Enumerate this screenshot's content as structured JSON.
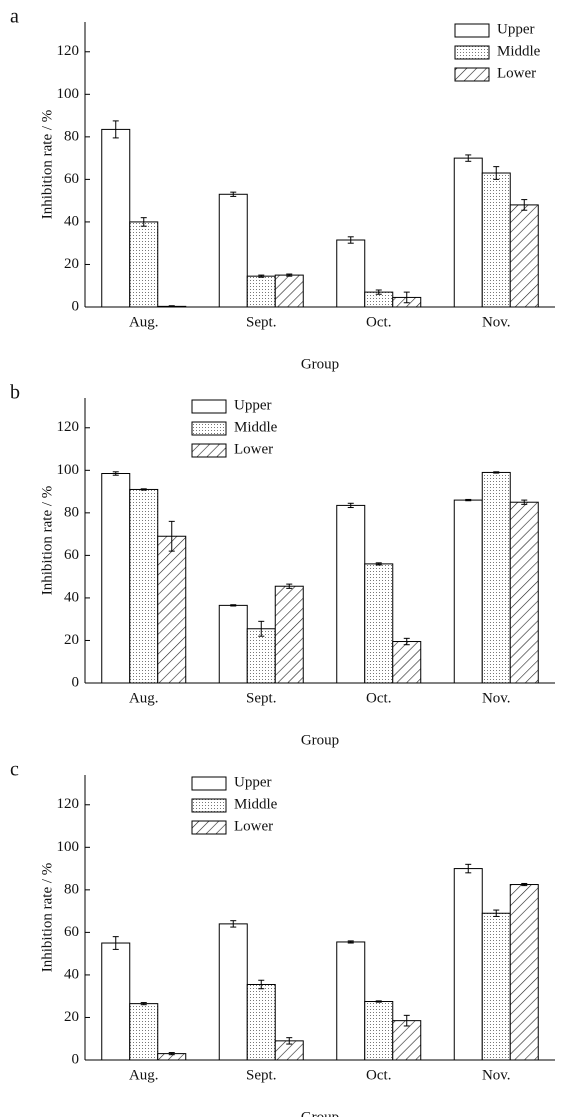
{
  "chart_data": [
    {
      "type": "bar",
      "panel_label": "a",
      "xlabel": "Group",
      "ylabel": "Inhibition rate / %",
      "categories": [
        "Aug.",
        "Sept.",
        "Oct.",
        "Nov."
      ],
      "series": [
        {
          "name": "Upper",
          "color": "#ffffff",
          "pattern": "none",
          "values": [
            83.5,
            53,
            31.5,
            70
          ],
          "errors": [
            4,
            1,
            1.5,
            1.5
          ]
        },
        {
          "name": "Middle",
          "color": "#ffffff",
          "pattern": "dots",
          "values": [
            40,
            14.5,
            7,
            63
          ],
          "errors": [
            2,
            0.5,
            1,
            3
          ]
        },
        {
          "name": "Lower",
          "color": "#ffffff",
          "pattern": "hatch",
          "values": [
            0.3,
            15,
            4.5,
            48
          ],
          "errors": [
            0.3,
            0.5,
            2.5,
            2.5
          ]
        }
      ],
      "ylim": [
        0,
        134
      ],
      "yticks": [
        0,
        20,
        40,
        60,
        80,
        100,
        120
      ],
      "legend": "upper right"
    },
    {
      "type": "bar",
      "panel_label": "b",
      "xlabel": "Group",
      "ylabel": "Inhibition rate / %",
      "categories": [
        "Aug.",
        "Sept.",
        "Oct.",
        "Nov."
      ],
      "series": [
        {
          "name": "Upper",
          "color": "#ffffff",
          "pattern": "none",
          "values": [
            98.5,
            36.5,
            83.5,
            86
          ],
          "errors": [
            0.8,
            0.3,
            1,
            0.3
          ]
        },
        {
          "name": "Middle",
          "color": "#ffffff",
          "pattern": "dots",
          "values": [
            91,
            25.5,
            56,
            99
          ],
          "errors": [
            0.3,
            3.5,
            0.5,
            0.3
          ]
        },
        {
          "name": "Lower",
          "color": "#ffffff",
          "pattern": "hatch",
          "values": [
            69,
            45.5,
            19.5,
            85
          ],
          "errors": [
            7,
            1,
            1.5,
            1
          ]
        }
      ],
      "ylim": [
        0,
        134
      ],
      "yticks": [
        0,
        20,
        40,
        60,
        80,
        100,
        120
      ],
      "legend": "upper left"
    },
    {
      "type": "bar",
      "panel_label": "c",
      "xlabel": "Group",
      "ylabel": "Inhibition rate / %",
      "categories": [
        "Aug.",
        "Sept.",
        "Oct.",
        "Nov."
      ],
      "series": [
        {
          "name": "Upper",
          "color": "#ffffff",
          "pattern": "none",
          "values": [
            55,
            64,
            55.5,
            90
          ],
          "errors": [
            3,
            1.5,
            0.5,
            2
          ]
        },
        {
          "name": "Middle",
          "color": "#ffffff",
          "pattern": "dots",
          "values": [
            26.5,
            35.5,
            27.5,
            69
          ],
          "errors": [
            0.5,
            2,
            0.3,
            1.5
          ]
        },
        {
          "name": "Lower",
          "color": "#ffffff",
          "pattern": "hatch",
          "values": [
            3,
            9,
            18.5,
            82.5
          ],
          "errors": [
            0.5,
            1.5,
            2.5,
            0.5
          ]
        }
      ],
      "ylim": [
        0,
        134
      ],
      "yticks": [
        0,
        20,
        40,
        60,
        80,
        100,
        120
      ],
      "legend": "upper left"
    }
  ]
}
